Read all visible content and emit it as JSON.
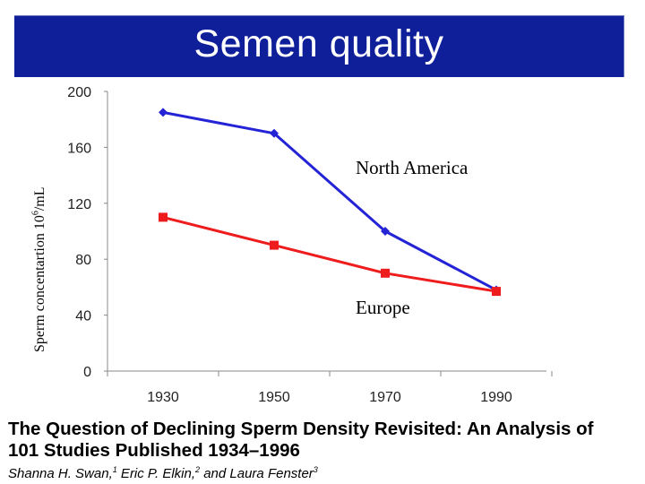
{
  "slide": {
    "title": "Semen quality"
  },
  "chart_data": {
    "type": "line",
    "title": "Semen quality",
    "ylabel": "Sperm concentartion 10",
    "ylabel_exponent": "6",
    "ylabel_unit": "/mL",
    "xlabel": "",
    "categories": [
      1930,
      1950,
      1970,
      1990
    ],
    "ylim": [
      0,
      200
    ],
    "yticks": [
      0,
      40,
      80,
      120,
      160,
      200
    ],
    "series": [
      {
        "name": "North America",
        "values": [
          185,
          170,
          100,
          58
        ],
        "color": "#2424d6",
        "marker": "diamond"
      },
      {
        "name": "Europe",
        "values": [
          110,
          90,
          70,
          57
        ],
        "color": "#ee1c1c",
        "marker": "square"
      }
    ],
    "annotations": [
      "North America",
      "Europe"
    ]
  },
  "paper": {
    "title_line1": "The Question of Declining Sperm Density Revisited: An Analysis of",
    "title_line2": "101 Studies Published 1934–1996",
    "authors": [
      {
        "name": "Shanna H. Swan,",
        "sup": "1"
      },
      {
        "name": " Eric P. Elkin,",
        "sup": "2"
      },
      {
        "name": " and Laura Fenster",
        "sup": "3"
      }
    ]
  }
}
